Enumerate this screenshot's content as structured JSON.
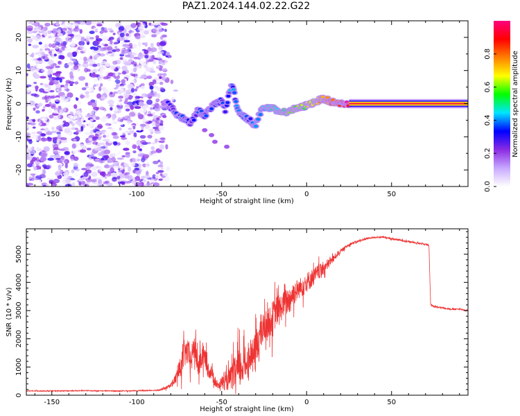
{
  "title": "PAZ1.2024.144.02.22.G22",
  "chart_data": [
    {
      "type": "heatmap",
      "xlabel": "Height of straight line (km)",
      "ylabel": "Frequency (Hz)",
      "xlim": [
        -165,
        95
      ],
      "ylim": [
        -25,
        25
      ],
      "xticks": [
        -150,
        -100,
        -50,
        0,
        50
      ],
      "yticks": [
        -20,
        -10,
        0,
        10,
        20
      ],
      "colorbar": {
        "label": "Normalized spectral amplitude",
        "range": [
          0,
          1
        ],
        "ticks": [
          0.0,
          0.2,
          0.4,
          0.6,
          0.8
        ],
        "colors": [
          "#ffffff",
          "#c8a8ff",
          "#8a2be2",
          "#0000ff",
          "#00e5ff",
          "#00ff00",
          "#ffff00",
          "#ff8000",
          "#ff0000",
          "#ff0080"
        ]
      },
      "noise_region": {
        "x": [
          -165,
          -83
        ],
        "y": [
          -25,
          25
        ],
        "amplitude": [
          0.0,
          0.3
        ]
      },
      "signal_track": [
        {
          "x": -83,
          "y": 0.5,
          "amp": 0.15
        },
        {
          "x": -80,
          "y": -1.0,
          "amp": 0.2
        },
        {
          "x": -76,
          "y": -3.5,
          "amp": 0.3
        },
        {
          "x": -72,
          "y": -4.5,
          "amp": 0.3
        },
        {
          "x": -68,
          "y": -6.0,
          "amp": 0.25
        },
        {
          "x": -64,
          "y": -2.0,
          "amp": 0.25
        },
        {
          "x": -60,
          "y": -3.5,
          "amp": 0.25
        },
        {
          "x": -56,
          "y": -1.0,
          "amp": 0.25
        },
        {
          "x": -50,
          "y": 1.0,
          "amp": 0.25
        },
        {
          "x": -48,
          "y": -2.0,
          "amp": 0.25
        },
        {
          "x": -44,
          "y": 6.0,
          "amp": 0.3
        },
        {
          "x": -40,
          "y": -2.5,
          "amp": 0.3
        },
        {
          "x": -36,
          "y": -4.0,
          "amp": 0.3
        },
        {
          "x": -30,
          "y": -6.5,
          "amp": 0.3
        },
        {
          "x": -26,
          "y": -1.0,
          "amp": 0.35
        },
        {
          "x": -20,
          "y": -1.5,
          "amp": 0.4
        },
        {
          "x": -15,
          "y": -3.0,
          "amp": 0.45
        },
        {
          "x": -10,
          "y": -2.0,
          "amp": 0.5
        },
        {
          "x": -5,
          "y": -1.5,
          "amp": 0.5
        },
        {
          "x": 0,
          "y": -0.5,
          "amp": 0.55
        },
        {
          "x": 5,
          "y": 0.5,
          "amp": 0.6
        },
        {
          "x": 10,
          "y": 1.5,
          "amp": 0.7
        },
        {
          "x": 15,
          "y": 0.5,
          "amp": 0.75
        },
        {
          "x": 20,
          "y": 0.0,
          "amp": 0.8
        },
        {
          "x": 25,
          "y": 0.0,
          "amp": 0.95
        },
        {
          "x": 95,
          "y": 0.0,
          "amp": 0.95
        }
      ]
    },
    {
      "type": "line",
      "xlabel": "Height of straight line (km)",
      "ylabel": "SNR (10 * v/v)",
      "xlim": [
        -165,
        95
      ],
      "ylim": [
        0,
        5900
      ],
      "xticks": [
        -150,
        -100,
        -50,
        0,
        50
      ],
      "yticks": [
        0,
        1000,
        2000,
        3000,
        4000,
        5000
      ],
      "color": "#ee3333",
      "series": [
        {
          "x": [
            -165,
            -150,
            -130,
            -110,
            -100,
            -90,
            -85,
            -80,
            -77,
            -74,
            -72,
            -70,
            -68,
            -66,
            -64,
            -62,
            -60,
            -58,
            -56,
            -54,
            -52,
            -50,
            -48,
            -45,
            -42,
            -40,
            -38,
            -36,
            -34,
            -32,
            -30,
            -28,
            -26,
            -24,
            -22,
            -20,
            -18,
            -16,
            -14,
            -12,
            -10,
            -8,
            -6,
            -4,
            -2,
            0,
            2,
            4,
            6,
            8,
            10,
            12,
            14,
            16,
            18,
            20,
            22,
            25,
            30,
            35,
            40,
            45,
            50,
            55,
            60,
            65,
            70,
            72,
            73,
            75,
            80,
            85,
            90,
            95
          ],
          "y": [
            150,
            150,
            160,
            150,
            160,
            170,
            200,
            350,
            600,
            1000,
            1500,
            1500,
            1200,
            1800,
            1000,
            1300,
            1400,
            900,
            800,
            500,
            300,
            500,
            400,
            600,
            800,
            900,
            1000,
            1100,
            1300,
            1400,
            1500,
            2100,
            2300,
            2500,
            2600,
            2700,
            3000,
            3000,
            3200,
            3300,
            3400,
            3600,
            3700,
            3800,
            3900,
            4000,
            4100,
            4200,
            4300,
            4400,
            4500,
            4600,
            4750,
            4850,
            5000,
            5100,
            5200,
            5350,
            5450,
            5550,
            5600,
            5600,
            5550,
            5500,
            5450,
            5400,
            5350,
            5300,
            3200,
            3150,
            3100,
            3050,
            3050,
            3000
          ],
          "noise_amplitude": [
            30,
            30,
            30,
            30,
            30,
            40,
            60,
            150,
            400,
            800,
            1000,
            900,
            900,
            1000,
            800,
            900,
            700,
            600,
            500,
            400,
            300,
            400,
            500,
            800,
            1200,
            1500,
            1300,
            1100,
            900,
            900,
            1500,
            1400,
            1200,
            1000,
            1000,
            1300,
            1100,
            1100,
            900,
            1000,
            1000,
            900,
            800,
            700,
            800,
            700,
            700,
            600,
            600,
            500,
            500,
            400,
            300,
            250,
            200,
            150,
            120,
            100,
            80,
            70,
            60,
            60,
            60,
            60,
            60,
            60,
            60,
            60,
            60,
            60,
            50,
            50,
            50,
            50
          ]
        }
      ]
    }
  ]
}
